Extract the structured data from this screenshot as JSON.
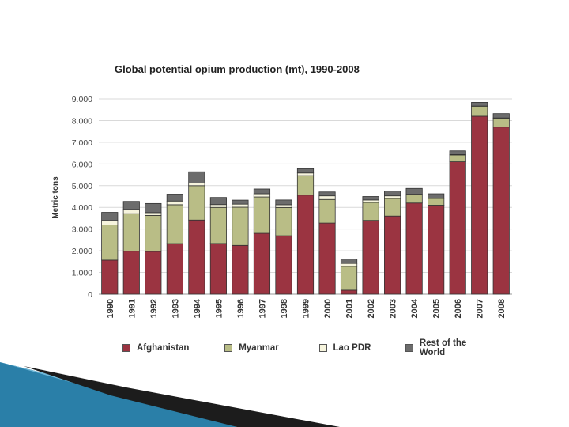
{
  "chart_data": {
    "type": "bar",
    "stacked": true,
    "title": "Global potential opium production (mt), 1990-2008",
    "ylabel": "Metric tons",
    "xlabel": "",
    "ylim": [
      0,
      9000
    ],
    "yticks": [
      0,
      1000,
      2000,
      3000,
      4000,
      5000,
      6000,
      7000,
      8000,
      9000
    ],
    "ytick_labels": [
      "0",
      "1.000",
      "2.000",
      "3.000",
      "4.000",
      "5.000",
      "6.000",
      "7.000",
      "8.000",
      "9.000"
    ],
    "grid": true,
    "legend_position": "bottom",
    "categories": [
      "1990",
      "1991",
      "1992",
      "1993",
      "1994",
      "1995",
      "1996",
      "1997",
      "1998",
      "1999",
      "2000",
      "2001",
      "2002",
      "2003",
      "2004",
      "2005",
      "2006",
      "2007",
      "2008"
    ],
    "series": [
      {
        "name": "Afghanistan",
        "color": "#9b3441",
        "values": [
          1570,
          1980,
          1970,
          2330,
          3416,
          2335,
          2248,
          2804,
          2693,
          4565,
          3276,
          185,
          3400,
          3600,
          4200,
          4100,
          6100,
          8200,
          7700
        ]
      },
      {
        "name": "Myanmar",
        "color": "#b9bd86",
        "values": [
          1621,
          1728,
          1660,
          1791,
          1583,
          1664,
          1760,
          1676,
          1303,
          895,
          1087,
          1097,
          828,
          810,
          370,
          312,
          315,
          460,
          410
        ]
      },
      {
        "name": "Lao PDR",
        "color": "#f6f4dd",
        "values": [
          202,
          196,
          127,
          169,
          120,
          128,
          140,
          147,
          124,
          124,
          167,
          134,
          112,
          120,
          43,
          14,
          20,
          9,
          10
        ]
      },
      {
        "name": "Rest of the World",
        "color": "#6c6c6c",
        "values": [
          377,
          370,
          420,
          320,
          520,
          330,
          185,
          220,
          220,
          200,
          180,
          200,
          160,
          220,
          260,
          200,
          170,
          170,
          200
        ]
      }
    ]
  }
}
